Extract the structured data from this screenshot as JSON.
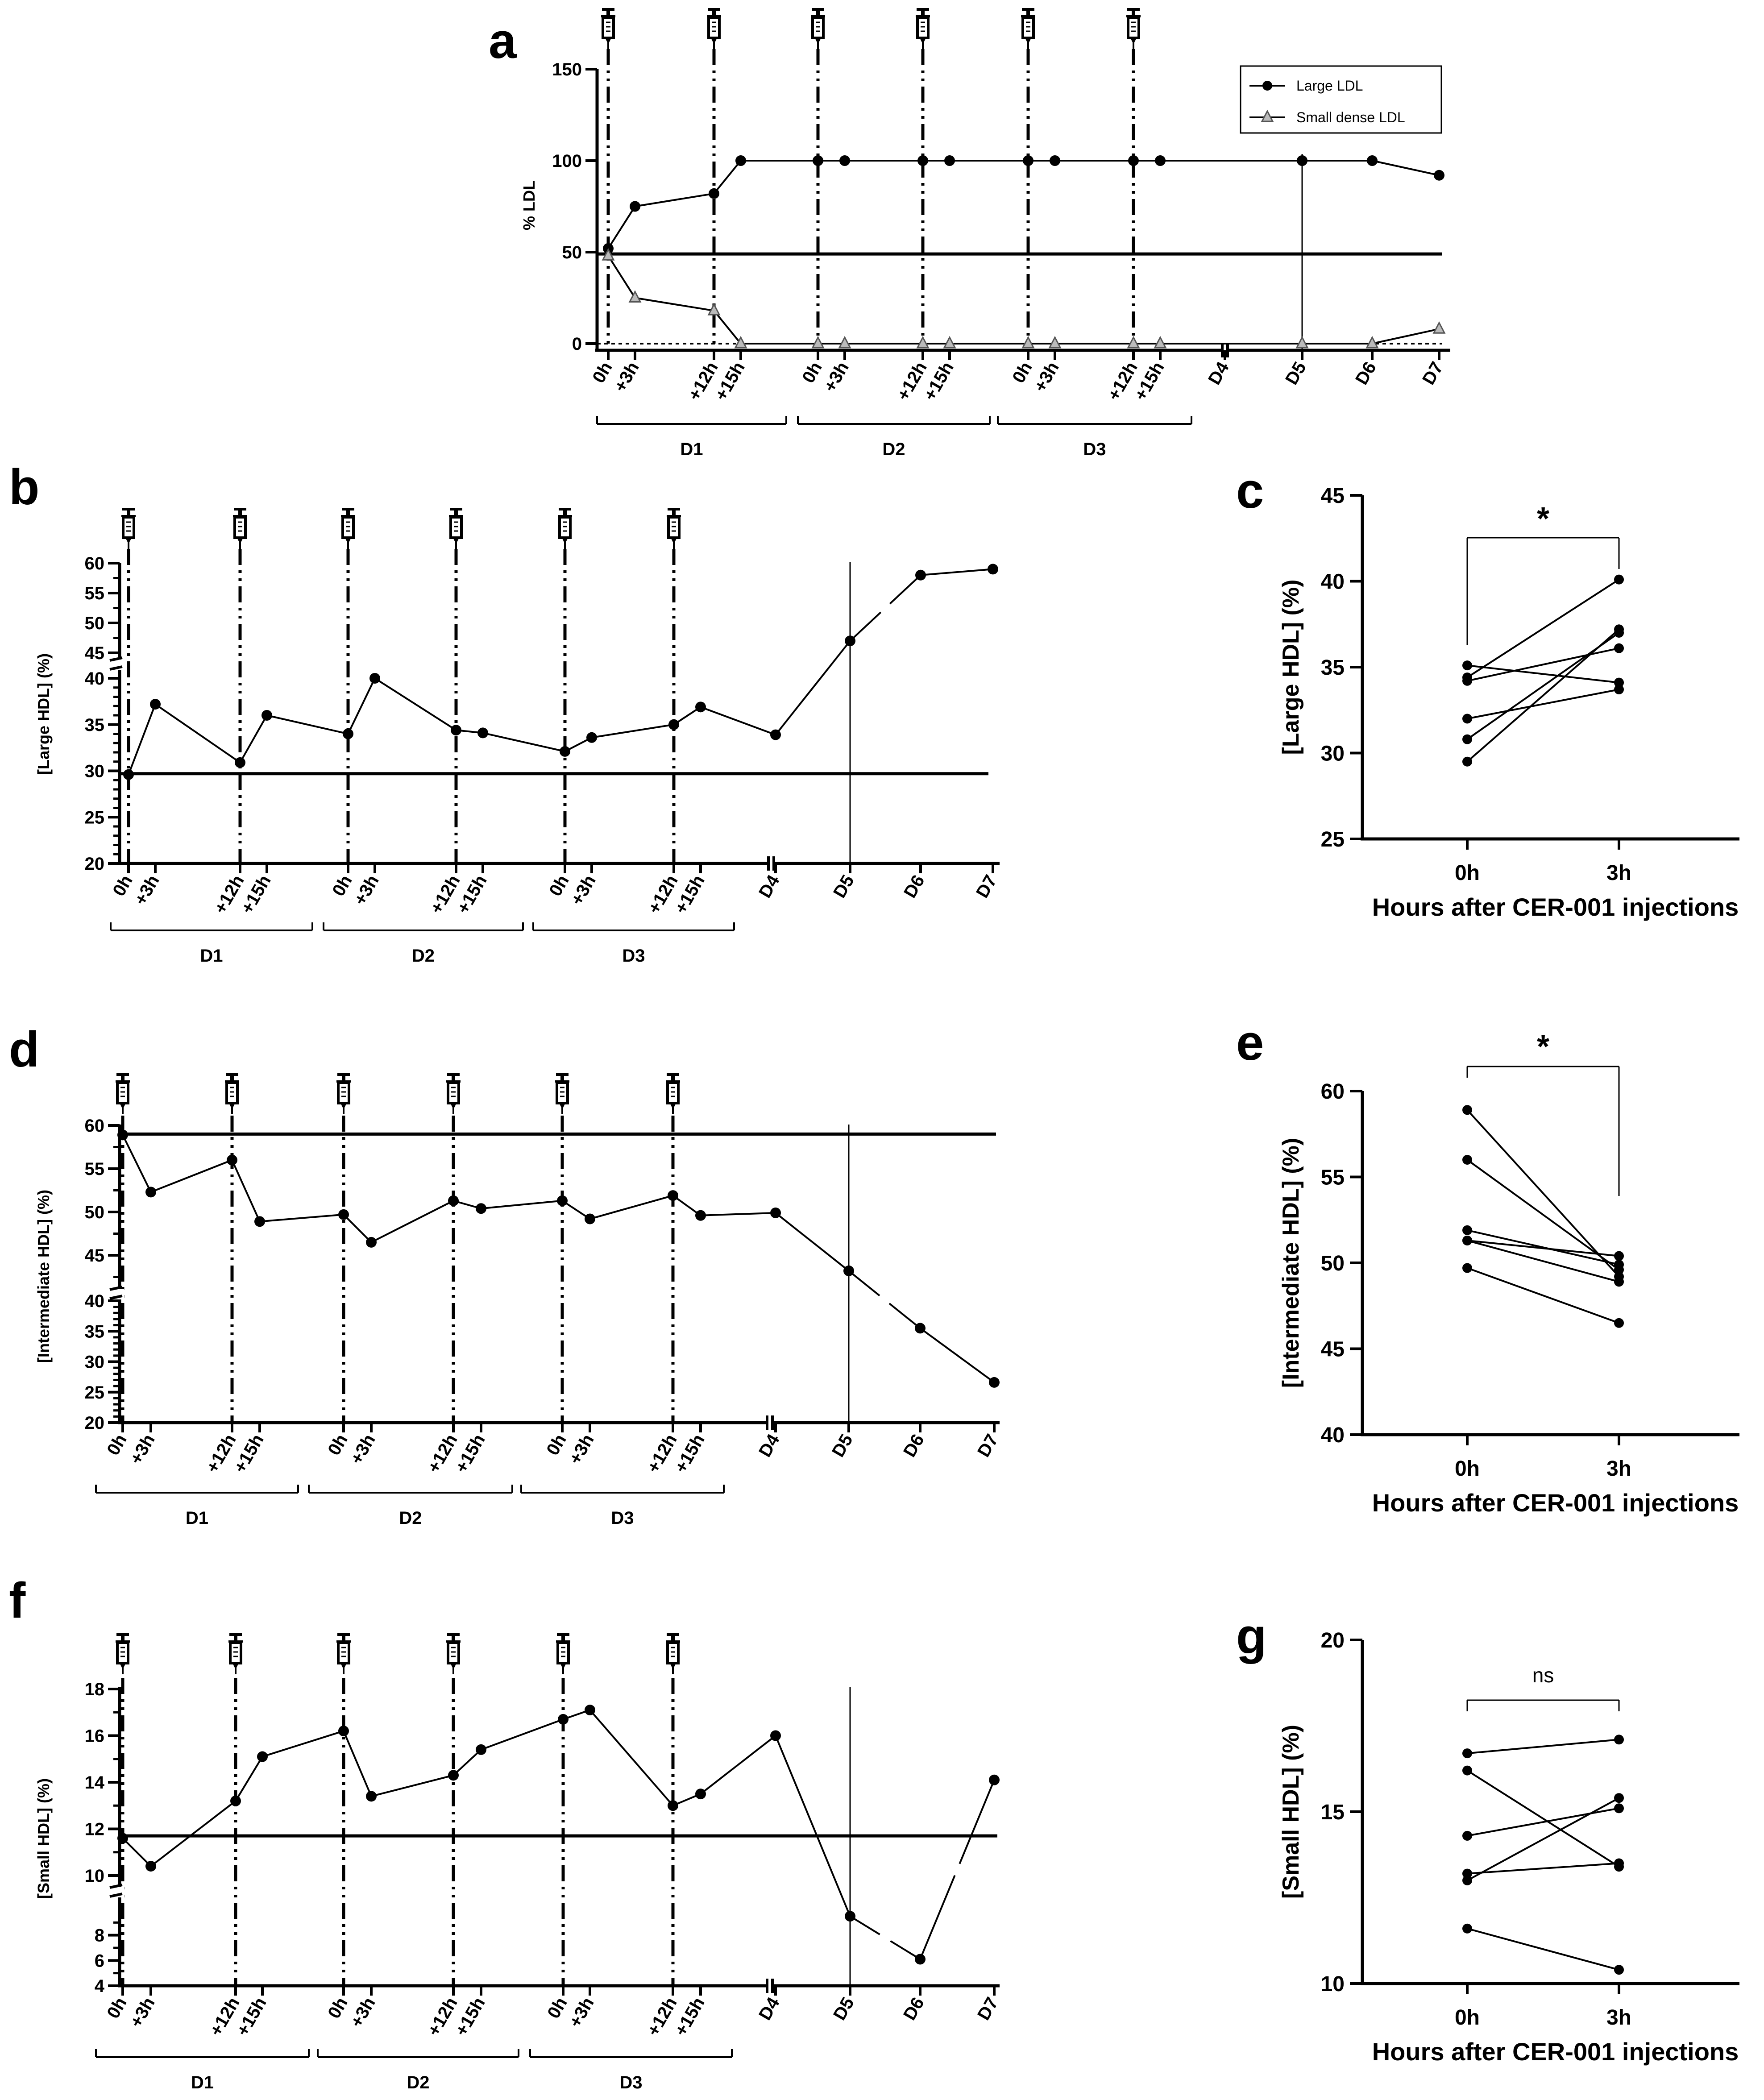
{
  "chart_data": [
    {
      "id": "a",
      "panel_label": "a",
      "type": "line",
      "ylabel": "% LDL",
      "ylim": [
        0,
        150
      ],
      "yticks": [
        0,
        50,
        100,
        150
      ],
      "categories": [
        "0h",
        "+3h",
        "+12h",
        "+15h",
        "0h",
        "+3h",
        "+12h",
        "+15h",
        "0h",
        "+3h",
        "+12h",
        "+15h",
        "D4",
        "D5",
        "D6",
        "D7"
      ],
      "day_groups": [
        "D1",
        "D2",
        "D3"
      ],
      "series": [
        {
          "name": "Large LDL",
          "marker": "circle",
          "values": [
            52,
            75,
            82,
            100,
            100,
            100,
            100,
            100,
            100,
            100,
            100,
            100,
            null,
            100,
            100,
            92
          ]
        },
        {
          "name": "Small dense LDL",
          "marker": "triangle",
          "values": [
            48,
            25,
            18,
            0,
            0,
            0,
            0,
            0,
            0,
            0,
            0,
            0,
            null,
            0,
            0,
            8
          ]
        }
      ],
      "baseline": 49,
      "legend_position": "top-right"
    },
    {
      "id": "b",
      "panel_label": "b",
      "type": "line",
      "ylabel": "[Large HDL] (%)",
      "yticks_lower": [
        20,
        25,
        30,
        35,
        40
      ],
      "yticks_upper": [
        45,
        50,
        55,
        60
      ],
      "categories": [
        "0h",
        "+3h",
        "+12h",
        "+15h",
        "0h",
        "+3h",
        "+12h",
        "+15h",
        "0h",
        "+3h",
        "+12h",
        "+15h",
        "D4",
        "D5",
        "D6",
        "D7"
      ],
      "day_groups": [
        "D1",
        "D2",
        "D3"
      ],
      "series": [
        {
          "name": "Large HDL",
          "values": [
            29.6,
            37.2,
            30.9,
            36,
            34,
            40,
            34.4,
            34.1,
            32.1,
            33.6,
            35,
            36.9,
            33.9,
            47,
            58,
            59
          ]
        }
      ],
      "baseline": 29.7
    },
    {
      "id": "c",
      "panel_label": "c",
      "type": "line",
      "ylabel": "[Large HDL] (%)",
      "xlabel": "Hours after CER-001 injections",
      "categories": [
        "0h",
        "3h"
      ],
      "ylim": [
        25,
        45
      ],
      "yticks": [
        25,
        30,
        35,
        40,
        45
      ],
      "pairs": [
        [
          29.5,
          37.2
        ],
        [
          30.8,
          37
        ],
        [
          32,
          33.7
        ],
        [
          34.2,
          36.1
        ],
        [
          35.1,
          34.1
        ],
        [
          34.4,
          40.1
        ]
      ],
      "significance": "*"
    },
    {
      "id": "d",
      "panel_label": "d",
      "type": "line",
      "ylabel": "[Intermediate HDL] (%)",
      "yticks_lower": [
        20,
        25,
        30,
        35,
        40
      ],
      "yticks_upper": [
        40,
        45,
        50,
        55,
        60
      ],
      "categories": [
        "0h",
        "+3h",
        "+12h",
        "+15h",
        "0h",
        "+3h",
        "+12h",
        "+15h",
        "0h",
        "+3h",
        "+12h",
        "+15h",
        "D4",
        "D5",
        "D6",
        "D7"
      ],
      "day_groups": [
        "D1",
        "D2",
        "D3"
      ],
      "series": [
        {
          "name": "Intermediate HDL",
          "values": [
            58.9,
            52.3,
            56,
            48.9,
            49.7,
            46.5,
            51.3,
            50.4,
            51.3,
            49.2,
            51.9,
            49.6,
            49.9,
            43.2,
            35.5,
            26.6
          ]
        }
      ],
      "baseline": 59
    },
    {
      "id": "e",
      "panel_label": "e",
      "type": "line",
      "ylabel": "[Intermediate HDL] (%)",
      "xlabel": "Hours after CER-001 injections",
      "categories": [
        "0h",
        "3h"
      ],
      "ylim": [
        40,
        60
      ],
      "yticks": [
        40,
        45,
        50,
        55,
        60
      ],
      "pairs": [
        [
          58.9,
          49.2
        ],
        [
          56,
          49.6
        ],
        [
          51.9,
          49.9
        ],
        [
          51.3,
          50.4
        ],
        [
          51.3,
          48.9
        ],
        [
          49.7,
          46.5
        ]
      ],
      "significance": "*"
    },
    {
      "id": "f",
      "panel_label": "f",
      "type": "line",
      "ylabel": "[Small HDL] (%)",
      "yticks_lower": [
        4,
        6,
        8,
        10
      ],
      "yticks_upper": [
        10,
        12,
        14,
        16,
        18
      ],
      "categories": [
        "0h",
        "+3h",
        "+12h",
        "+15h",
        "0h",
        "+3h",
        "+12h",
        "+15h",
        "0h",
        "+3h",
        "+12h",
        "+15h",
        "D4",
        "D5",
        "D6",
        "D7"
      ],
      "day_groups": [
        "D1",
        "D2",
        "D3"
      ],
      "series": [
        {
          "name": "Small HDL",
          "values": [
            11.6,
            10.4,
            13.2,
            15.1,
            16.2,
            13.4,
            14.3,
            15.4,
            16.7,
            17.1,
            13,
            13.5,
            16,
            9.5,
            6.1,
            14.1
          ]
        }
      ],
      "baseline": 11.7
    },
    {
      "id": "g",
      "panel_label": "g",
      "type": "line",
      "ylabel": "[Small HDL] (%)",
      "xlabel": "Hours after CER-001 injections",
      "categories": [
        "0h",
        "3h"
      ],
      "ylim": [
        10,
        20
      ],
      "yticks": [
        10,
        15,
        20
      ],
      "pairs": [
        [
          16.7,
          17.1
        ],
        [
          16.2,
          13.4
        ],
        [
          14.3,
          15.1
        ],
        [
          13.2,
          13.5
        ],
        [
          13,
          15.4
        ],
        [
          11.6,
          10.4
        ]
      ],
      "significance": "ns"
    }
  ]
}
